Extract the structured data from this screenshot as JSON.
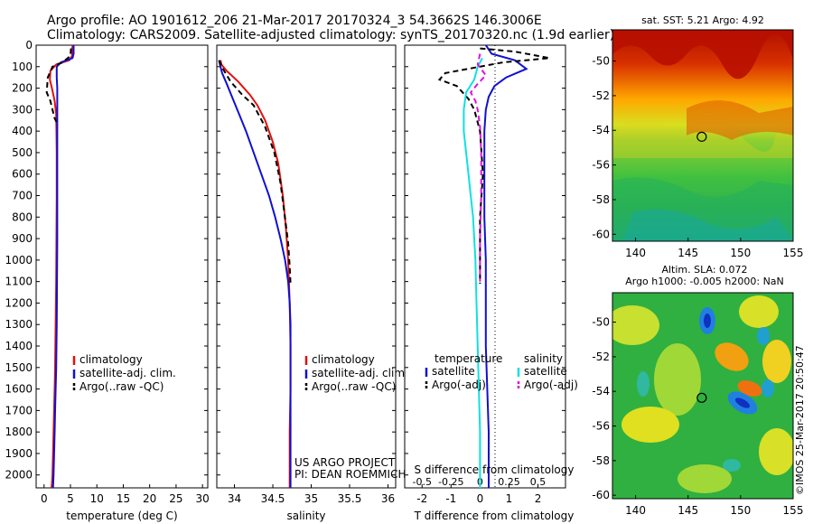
{
  "header": {
    "line1": "Argo profile: AO 1901612_206 21-Mar-2017 20170324_3 54.3662S 146.3006E",
    "line2": "Climatology: CARS2009. Satellite-adjusted climatology: synTS_20170320.nc (1.9d earlier)"
  },
  "colors": {
    "climatology": "#e01010",
    "satellite": "#1010d0",
    "argo": "#000000",
    "sal_satellite": "#10e0e0",
    "sal_argo": "#e010e0"
  },
  "footer": {
    "project": "US ARGO PROJECT",
    "pi": "PI: DEAN ROEMMICH",
    "credit": "©IMOS 25-Mar-2017 20:50:47"
  },
  "chart_data": [
    {
      "type": "line",
      "panel": "temperature",
      "xlabel": "temperature (deg C)",
      "ylabel": "",
      "xlim": [
        -1.5,
        31
      ],
      "ylim": [
        2060,
        0
      ],
      "xticks": [
        0,
        5,
        10,
        15,
        20,
        25,
        30
      ],
      "yticks": [
        0,
        100,
        200,
        300,
        400,
        500,
        600,
        700,
        800,
        900,
        1000,
        1100,
        1200,
        1300,
        1400,
        1500,
        1600,
        1700,
        1800,
        1900,
        2000
      ],
      "legend": {
        "position": "lower-middle",
        "entries": [
          {
            "label": "climatology",
            "color": "#e01010"
          },
          {
            "label": "satellite-adj. clim.",
            "color": "#1010d0"
          },
          {
            "label": "Argo(..raw -QC)",
            "color": "#000000",
            "dash": true
          }
        ]
      },
      "series": [
        {
          "name": "climatology",
          "color": "#e01010",
          "x": [
            5.4,
            5.3,
            4.8,
            2.3,
            1.2,
            1.1,
            1.5,
            2.0,
            2.3,
            2.35,
            2.4,
            2.4,
            2.35,
            2.3,
            2.2,
            2.1,
            2.0,
            1.9,
            1.8,
            1.7,
            1.6,
            1.5,
            1.4
          ],
          "y": [
            0,
            50,
            70,
            90,
            120,
            160,
            200,
            260,
            320,
            400,
            500,
            700,
            900,
            1100,
            1300,
            1500,
            1600,
            1700,
            1800,
            1900,
            2000,
            2040,
            2060
          ]
        },
        {
          "name": "satellite-adj. clim.",
          "color": "#1010d0",
          "x": [
            5.6,
            5.6,
            5.4,
            3.2,
            2.4,
            2.4,
            2.5,
            2.5,
            2.5,
            2.5,
            2.5,
            2.5,
            2.45,
            2.4,
            2.3,
            2.2,
            2.1,
            2.0,
            1.9,
            1.8,
            1.7
          ],
          "y": [
            0,
            40,
            60,
            80,
            100,
            150,
            200,
            300,
            400,
            500,
            700,
            900,
            1100,
            1300,
            1500,
            1600,
            1700,
            1800,
            1900,
            2000,
            2060
          ]
        },
        {
          "name": "Argo(..raw -QC)",
          "color": "#000000",
          "dash": true,
          "x": [
            5.1,
            5.0,
            3.5,
            1.6,
            0.7,
            0.5,
            1.2,
            1.6,
            2.0,
            2.4
          ],
          "y": [
            15,
            50,
            80,
            100,
            150,
            220,
            260,
            300,
            340,
            360
          ]
        }
      ]
    },
    {
      "type": "line",
      "panel": "salinity",
      "xlabel": "salinity",
      "ylabel": "",
      "xlim": [
        33.77,
        36.1
      ],
      "ylim": [
        2060,
        0
      ],
      "xticks": [
        34,
        34.5,
        35,
        35.5,
        36
      ],
      "legend": {
        "position": "lower-right",
        "entries": [
          {
            "label": "climatology",
            "color": "#e01010"
          },
          {
            "label": "satellite-adj. clim.",
            "color": "#1010d0"
          },
          {
            "label": "Argo(..raw -QC)",
            "color": "#000000",
            "dash": true
          }
        ]
      },
      "series": [
        {
          "name": "climatology",
          "color": "#e01010",
          "x": [
            33.82,
            33.83,
            33.9,
            34.05,
            34.2,
            34.3,
            34.4,
            34.5,
            34.57,
            34.63,
            34.67,
            34.7,
            34.72,
            34.73,
            34.73,
            34.72,
            34.72,
            34.72
          ],
          "y": [
            70,
            90,
            120,
            170,
            230,
            280,
            350,
            450,
            550,
            700,
            850,
            1000,
            1200,
            1400,
            1600,
            1800,
            2000,
            2060
          ]
        },
        {
          "name": "satellite-adj. clim.",
          "color": "#1010d0",
          "x": [
            33.8,
            33.81,
            33.84,
            33.9,
            33.98,
            34.06,
            34.15,
            34.25,
            34.35,
            34.45,
            34.53,
            34.6,
            34.66,
            34.7,
            34.72,
            34.73,
            34.73,
            34.73,
            34.73
          ],
          "y": [
            70,
            90,
            130,
            180,
            250,
            320,
            400,
            500,
            600,
            700,
            800,
            900,
            1000,
            1100,
            1200,
            1300,
            1500,
            1800,
            2060
          ]
        },
        {
          "name": "Argo(..raw -QC)",
          "color": "#000000",
          "dash": true,
          "x": [
            33.8,
            33.85,
            33.95,
            34.1,
            34.25,
            34.4,
            34.52,
            34.6,
            34.65,
            34.7,
            34.72,
            34.73
          ],
          "y": [
            70,
            110,
            170,
            230,
            280,
            380,
            500,
            640,
            780,
            920,
            1030,
            1110
          ]
        }
      ]
    },
    {
      "type": "line",
      "panel": "difference",
      "xlabel": "T difference from climatology",
      "x2label": "S difference from climatology",
      "xlim": [
        -2.6,
        2.95
      ],
      "x2lim": [
        -0.65,
        0.7375
      ],
      "ylim": [
        2060,
        0
      ],
      "xticks": [
        -2,
        -1,
        0,
        1,
        2
      ],
      "x2ticks": [
        -0.5,
        -0.25,
        0,
        0.25,
        0.5
      ],
      "x2ticklabels": [
        "-0.5",
        "-0.25",
        "0",
        "0.25",
        "0.5"
      ],
      "legend": {
        "position": "lower-middle",
        "headers": [
          "temperature",
          "salinity"
        ],
        "entries": [
          {
            "label": "satellite",
            "color": "#1010d0",
            "column": "temperature"
          },
          {
            "label": "Argo(-adj)",
            "color": "#000000",
            "dash": true,
            "column": "temperature"
          },
          {
            "label": "satellite",
            "color": "#10e0e0",
            "column": "salinity"
          },
          {
            "label": "Argo(-adj)",
            "color": "#e010e0",
            "dash": true,
            "column": "salinity"
          }
        ]
      },
      "series": [
        {
          "name": "temperature satellite",
          "color": "#1010d0",
          "axis": "T",
          "x": [
            0.2,
            0.4,
            1.2,
            1.6,
            0.9,
            0.5,
            0.3,
            0.2,
            0.15,
            0.15,
            0.15,
            0.2,
            0.2,
            0.2,
            0.25,
            0.3,
            0.3,
            0.3
          ],
          "y": [
            0,
            40,
            70,
            110,
            150,
            190,
            240,
            300,
            400,
            600,
            800,
            1000,
            1200,
            1400,
            1600,
            1800,
            2000,
            2060
          ]
        },
        {
          "name": "temperature Argo(-adj)",
          "color": "#000000",
          "dash": true,
          "axis": "T",
          "x": [
            0.0,
            1.2,
            2.4,
            0.8,
            -1.2,
            -1.4,
            -0.8,
            -0.6,
            -0.4,
            -0.2,
            0.0,
            0.1,
            0.0,
            0.0,
            0.0,
            0.0
          ],
          "y": [
            15,
            30,
            60,
            80,
            130,
            160,
            190,
            220,
            250,
            300,
            400,
            600,
            800,
            1000,
            1100,
            1110
          ]
        },
        {
          "name": "salinity satellite",
          "color": "#10e0e0",
          "axis": "S",
          "x": [
            0.02,
            -0.02,
            -0.05,
            -0.12,
            -0.14,
            -0.14,
            -0.12,
            -0.1,
            -0.08,
            -0.06,
            -0.05,
            -0.04,
            -0.03,
            -0.02,
            -0.01,
            0.0,
            0.0
          ],
          "y": [
            60,
            100,
            160,
            220,
            300,
            400,
            500,
            600,
            700,
            800,
            900,
            1000,
            1200,
            1400,
            1600,
            1800,
            2060
          ]
        },
        {
          "name": "salinity Argo(-adj)",
          "color": "#e010e0",
          "dash": true,
          "axis": "S",
          "x": [
            0.0,
            -0.02,
            0.05,
            -0.02,
            -0.08,
            -0.04,
            -0.02,
            0.0,
            0.01,
            0.01,
            0.0,
            0.0
          ],
          "y": [
            40,
            90,
            140,
            180,
            220,
            260,
            300,
            380,
            500,
            700,
            900,
            1100
          ]
        }
      ]
    },
    {
      "type": "heatmap",
      "panel": "sst-map",
      "title": "sat. SST: 5.21  Argo: 4.92",
      "xlim": [
        137.8,
        155
      ],
      "ylim": [
        -60.4,
        -48.2
      ],
      "xticks": [
        140,
        145,
        150,
        155
      ],
      "yticks": [
        -50,
        -52,
        -54,
        -56,
        -58,
        -60
      ],
      "marker": {
        "lon": 146.3,
        "lat": -54.37
      }
    },
    {
      "type": "heatmap",
      "panel": "sla-map",
      "title": "Altim. SLA: 0.072",
      "subtitle": "Argo h1000: -0.005  h2000: NaN",
      "xlim": [
        137.8,
        155
      ],
      "ylim": [
        -60.2,
        -48.3
      ],
      "xticks": [
        140,
        145,
        150,
        155
      ],
      "yticks": [
        -50,
        -52,
        -54,
        -56,
        -58,
        -60
      ],
      "marker": {
        "lon": 146.3,
        "lat": -54.37
      }
    }
  ]
}
